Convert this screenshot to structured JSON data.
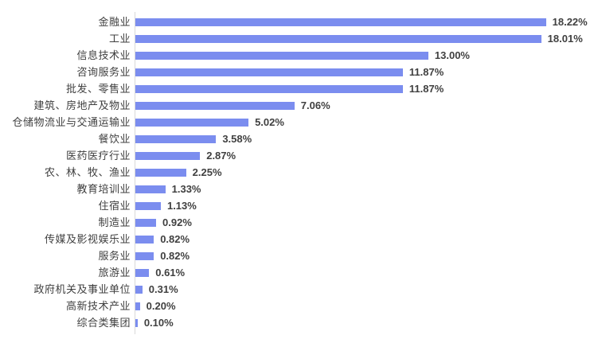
{
  "chart_data": {
    "type": "bar",
    "orientation": "horizontal",
    "title": "",
    "xlabel": "",
    "ylabel": "",
    "grid": false,
    "legend": false,
    "xlim": [
      0,
      20
    ],
    "categories": [
      "金融业",
      "工业",
      "信息技术业",
      "咨询服务业",
      "批发、零售业",
      "建筑、房地产及物业",
      "仓储物流业与交通运输业",
      "餐饮业",
      "医药医疗行业",
      "农、林、牧、渔业",
      "教育培训业",
      "住宿业",
      "制造业",
      "传媒及影视娱乐业",
      "服务业",
      "旅游业",
      "政府机关及事业单位",
      "高新技术产业",
      "综合类集团"
    ],
    "values": [
      18.22,
      18.01,
      13.0,
      11.87,
      11.87,
      7.06,
      5.02,
      3.58,
      2.87,
      2.25,
      1.33,
      1.13,
      0.92,
      0.82,
      0.82,
      0.61,
      0.31,
      0.2,
      0.1
    ],
    "value_labels": [
      "18.22%",
      "18.01%",
      "13.00%",
      "11.87%",
      "11.87%",
      "7.06%",
      "5.02%",
      "3.58%",
      "2.87%",
      "2.25%",
      "1.33%",
      "1.13%",
      "0.92%",
      "0.82%",
      "0.82%",
      "0.61%",
      "0.31%",
      "0.20%",
      "0.10%"
    ],
    "colors": {
      "bar": "#7B8DEF",
      "axis_line": "#D9D9D9",
      "label_text": "#404040",
      "value_text": "#404040",
      "background": "#FFFFFF"
    }
  }
}
